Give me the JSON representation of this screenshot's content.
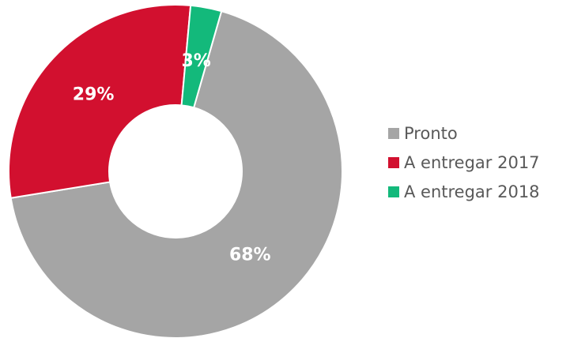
{
  "chart_data": {
    "type": "pie",
    "variant": "donut",
    "title": "",
    "slices": [
      {
        "name": "Pronto",
        "value": 68,
        "label": "68%",
        "color": "#A5A5A5"
      },
      {
        "name": "A entregar 2017",
        "value": 29,
        "label": "29%",
        "color": "#D2102F"
      },
      {
        "name": "A entregar 2018",
        "value": 3,
        "label": "3%",
        "color": "#13B97B"
      }
    ],
    "legend": {
      "position": "right",
      "items": [
        "Pronto",
        "A entregar 2017",
        "A entregar 2018"
      ]
    }
  }
}
